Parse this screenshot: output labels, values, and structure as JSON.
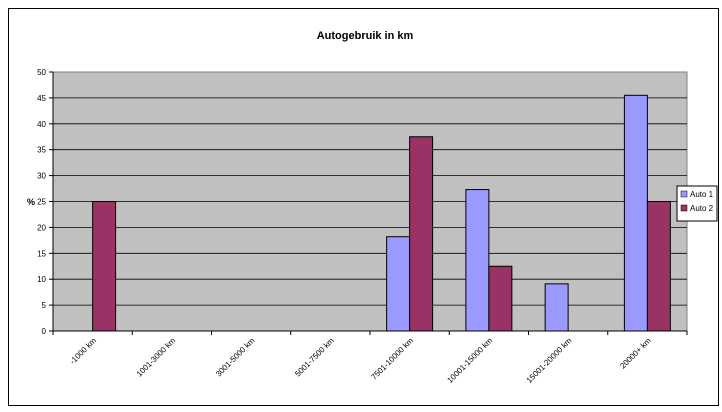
{
  "chart_data": {
    "type": "bar",
    "title": "Autogebruik in km",
    "xlabel": "",
    "ylabel": "%",
    "ylim": [
      0,
      50
    ],
    "ytick_step": 5,
    "grid": true,
    "legend_position": "right",
    "categories": [
      "-1000 km",
      "1001-3000 km",
      "3001-5000 km",
      "5001-7500 km",
      "7501-10000 km",
      "10001-15000 km",
      "15001-20000 km",
      "20000+ km"
    ],
    "series": [
      {
        "name": "Auto 1",
        "color": "#9999ff",
        "values": [
          0,
          0,
          0,
          0,
          18.2,
          27.3,
          9.1,
          45.5
        ]
      },
      {
        "name": "Auto 2",
        "color": "#993366",
        "values": [
          25,
          0,
          0,
          0,
          37.5,
          12.5,
          0,
          25
        ]
      }
    ],
    "plot_background": "#c0c0c0"
  }
}
